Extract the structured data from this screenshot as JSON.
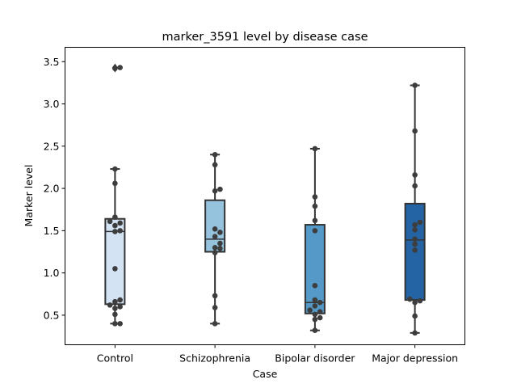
{
  "chart_data": {
    "type": "box",
    "title": "marker_3591 level by disease case",
    "xlabel": "Case",
    "ylabel": "Marker level",
    "ylim": [
      0.15,
      3.67
    ],
    "yticks": [
      0.5,
      1.0,
      1.5,
      2.0,
      2.5,
      3.0,
      3.5
    ],
    "ytick_labels": [
      "0.5",
      "1.0",
      "1.5",
      "2.0",
      "2.5",
      "3.0",
      "3.5"
    ],
    "grid": false,
    "categories": [
      "Control",
      "Schizophrenia",
      "Bipolar disorder",
      "Major depression"
    ],
    "colors": [
      "#d4e3f3",
      "#95c2dd",
      "#5499c8",
      "#2564a4"
    ],
    "boxes": [
      {
        "category": "Control",
        "q1": 0.63,
        "median": 1.49,
        "q3": 1.64,
        "whisker_low": 0.4,
        "whisker_high": 2.23,
        "outliers": [
          3.43,
          3.42
        ]
      },
      {
        "category": "Schizophrenia",
        "q1": 1.25,
        "median": 1.4,
        "q3": 1.86,
        "whisker_low": 0.4,
        "whisker_high": 2.4,
        "outliers": []
      },
      {
        "category": "Bipolar disorder",
        "q1": 0.52,
        "median": 0.65,
        "q3": 1.57,
        "whisker_low": 0.32,
        "whisker_high": 2.47,
        "outliers": []
      },
      {
        "category": "Major depression",
        "q1": 0.68,
        "median": 1.39,
        "q3": 1.82,
        "whisker_low": 0.29,
        "whisker_high": 3.22,
        "outliers": []
      }
    ],
    "points": [
      {
        "category": "Control",
        "values": [
          0.4,
          0.4,
          0.51,
          0.58,
          0.6,
          0.62,
          0.66,
          0.68,
          1.05,
          1.49,
          1.5,
          1.56,
          1.59,
          1.61,
          1.66,
          2.06,
          2.23,
          3.43,
          3.42
        ]
      },
      {
        "category": "Schizophrenia",
        "values": [
          0.4,
          0.59,
          0.73,
          1.24,
          1.29,
          1.3,
          1.35,
          1.43,
          1.48,
          1.52,
          1.97,
          1.99,
          2.28,
          2.4
        ]
      },
      {
        "category": "Bipolar disorder",
        "values": [
          0.32,
          0.45,
          0.47,
          0.51,
          0.54,
          0.56,
          0.61,
          0.65,
          0.68,
          0.85,
          1.5,
          1.62,
          1.79,
          1.9,
          2.47
        ]
      },
      {
        "category": "Major depression",
        "values": [
          0.29,
          0.49,
          0.65,
          0.67,
          0.69,
          1.27,
          1.34,
          1.4,
          1.51,
          1.57,
          1.6,
          2.03,
          2.16,
          2.68,
          3.22
        ]
      }
    ]
  }
}
